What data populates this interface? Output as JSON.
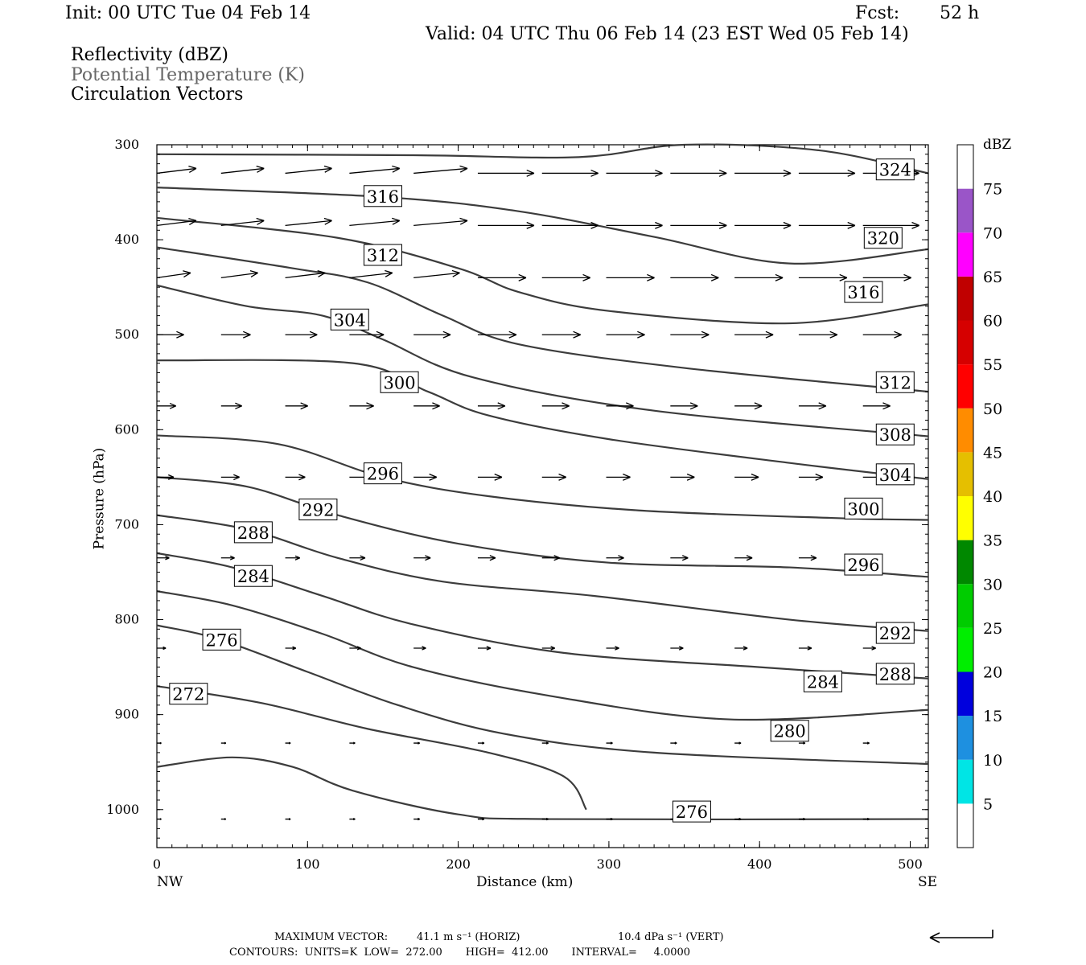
{
  "header": {
    "init": "Init: 00 UTC Tue 04 Feb 14",
    "fcst_label": "Fcst:",
    "fcst_value": "52 h",
    "valid": "Valid: 04 UTC Thu 06 Feb 14 (23 EST Wed 05 Feb 14)",
    "fields": [
      "Reflectivity (dBZ)",
      "Potential Temperature (K)",
      "Circulation Vectors"
    ]
  },
  "footer": {
    "max_vector_prefix": "MAXIMUM VECTOR:",
    "max_horiz": "41.1 m s⁻¹ (HORIZ)",
    "max_vert": "10.4 dPa s⁻¹ (VERT)",
    "contours": "CONTOURS:  UNITS=K  LOW=  272.00       HIGH=  412.00       INTERVAL=     4.0000"
  },
  "colors": {
    "contour": "#3c3c3c",
    "label_fill": "#ffffff"
  },
  "chart_data": {
    "type": "contour-cross-section",
    "xlabel": "Distance (km)",
    "ylabel": "Pressure (hPa)",
    "xlim": [
      0,
      512
    ],
    "ylim": [
      1040,
      300
    ],
    "x_ticks": [
      0,
      100,
      200,
      300,
      400,
      500
    ],
    "y_ticks": [
      300,
      400,
      500,
      600,
      700,
      800,
      900,
      1000
    ],
    "x_end_labels": {
      "left": "NW",
      "right": "SE"
    },
    "colorbar": {
      "title": "dBZ",
      "levels": [
        5,
        10,
        15,
        20,
        25,
        30,
        35,
        40,
        45,
        50,
        55,
        60,
        65,
        70,
        75
      ],
      "colors": [
        "#ffffff",
        "#00e5e5",
        "#1e90e0",
        "#0000dd",
        "#00ee00",
        "#00cc00",
        "#008800",
        "#ffff00",
        "#e5bf00",
        "#ff8c00",
        "#ff0000",
        "#d60000",
        "#c00000",
        "#ff00ff",
        "#9a55c8",
        "#ffffff"
      ]
    },
    "theta_contours": [
      {
        "label": "324",
        "points": [
          [
            0,
            310
          ],
          [
            170,
            311
          ],
          [
            280,
            313
          ],
          [
            350,
            300
          ],
          [
            440,
            306
          ],
          [
            512,
            330
          ]
        ],
        "label_at": [
          490,
          326
        ]
      },
      {
        "label": "320",
        "points": [
          [
            0,
            345
          ],
          [
            150,
            355
          ],
          [
            240,
            370
          ],
          [
            330,
            397
          ],
          [
            420,
            425
          ],
          [
            512,
            410
          ]
        ],
        "label_at": [
          482,
          398
        ]
      },
      {
        "label": "316",
        "points": [
          [
            0,
            377
          ],
          [
            120,
            398
          ],
          [
            200,
            430
          ],
          [
            240,
            455
          ],
          [
            300,
            475
          ],
          [
            420,
            488
          ],
          [
            512,
            468
          ]
        ],
        "label_at": [
          150,
          354
        ],
        "label2": "316",
        "label2_at": [
          469,
          455
        ]
      },
      {
        "label": "312",
        "points": [
          [
            0,
            408
          ],
          [
            90,
            430
          ],
          [
            140,
            445
          ],
          [
            190,
            480
          ],
          [
            240,
            510
          ],
          [
            350,
            535
          ],
          [
            512,
            560
          ]
        ],
        "label_at": [
          150,
          416
        ],
        "label2_at": [
          490,
          550
        ]
      },
      {
        "label": "308",
        "points": [
          [
            0,
            448
          ],
          [
            60,
            470
          ],
          [
            110,
            480
          ],
          [
            150,
            505
          ],
          [
            210,
            545
          ],
          [
            330,
            580
          ],
          [
            512,
            607
          ]
        ],
        "label_at": null,
        "label2_at": [
          490,
          605
        ]
      },
      {
        "label": "304",
        "points": [
          [
            0,
            527
          ],
          [
            130,
            530
          ],
          [
            180,
            560
          ],
          [
            220,
            585
          ],
          [
            300,
            610
          ],
          [
            420,
            635
          ],
          [
            512,
            652
          ]
        ],
        "label_at": [
          128,
          484
        ],
        "label2_at": [
          490,
          647
        ]
      },
      {
        "label": "300",
        "points": [
          [
            0,
            606
          ],
          [
            80,
            615
          ],
          [
            150,
            650
          ],
          [
            220,
            670
          ],
          [
            320,
            685
          ],
          [
            450,
            693
          ],
          [
            512,
            695
          ]
        ],
        "label_at": [
          161,
          550
        ],
        "label2_at": [
          469,
          683
        ]
      },
      {
        "label": "296",
        "points": [
          [
            0,
            650
          ],
          [
            60,
            660
          ],
          [
            120,
            690
          ],
          [
            200,
            720
          ],
          [
            300,
            740
          ],
          [
            420,
            745
          ],
          [
            512,
            755
          ]
        ],
        "label_at": [
          150,
          646
        ],
        "label2_at": [
          469,
          742
        ]
      },
      {
        "label": "292",
        "points": [
          [
            0,
            690
          ],
          [
            60,
            705
          ],
          [
            120,
            735
          ],
          [
            190,
            760
          ],
          [
            290,
            775
          ],
          [
            420,
            800
          ],
          [
            512,
            812
          ]
        ],
        "label_at": [
          107,
          684
        ],
        "label2_at": [
          490,
          814
        ]
      },
      {
        "label": "288",
        "points": [
          [
            0,
            730
          ],
          [
            50,
            745
          ],
          [
            110,
            775
          ],
          [
            170,
            805
          ],
          [
            270,
            835
          ],
          [
            400,
            850
          ],
          [
            512,
            862
          ]
        ],
        "label_at": [
          64,
          708
        ],
        "label2_at": [
          490,
          857
        ]
      },
      {
        "label": "284",
        "points": [
          [
            0,
            770
          ],
          [
            50,
            785
          ],
          [
            110,
            815
          ],
          [
            170,
            850
          ],
          [
            260,
            880
          ],
          [
            380,
            905
          ],
          [
            512,
            895
          ]
        ],
        "label_at": [
          64,
          754
        ],
        "label2_at": [
          442,
          865
        ]
      },
      {
        "label": "280",
        "points": [
          [
            0,
            806
          ],
          [
            40,
            820
          ],
          [
            100,
            855
          ],
          [
            160,
            890
          ],
          [
            230,
            920
          ],
          [
            330,
            940
          ],
          [
            512,
            952
          ]
        ],
        "label_at": null,
        "label2_at": [
          420,
          917
        ]
      },
      {
        "label": "276",
        "points": [
          [
            0,
            870
          ],
          [
            70,
            888
          ],
          [
            140,
            915
          ],
          [
            220,
            940
          ],
          [
            270,
            965
          ],
          [
            285,
            1000
          ]
        ],
        "label_at": [
          43,
          821
        ],
        "label2": "276",
        "label2_at": [
          355,
          1002
        ]
      },
      {
        "label": "272",
        "points": [
          [
            0,
            955
          ],
          [
            50,
            945
          ],
          [
            90,
            955
          ],
          [
            130,
            980
          ],
          [
            200,
            1005
          ],
          [
            260,
            1010
          ],
          [
            512,
            1010
          ]
        ],
        "label_at": [
          21,
          878
        ]
      }
    ],
    "vector_rows_hpa": [
      330,
      385,
      440,
      500,
      575,
      650,
      735,
      830,
      930,
      1010
    ]
  }
}
